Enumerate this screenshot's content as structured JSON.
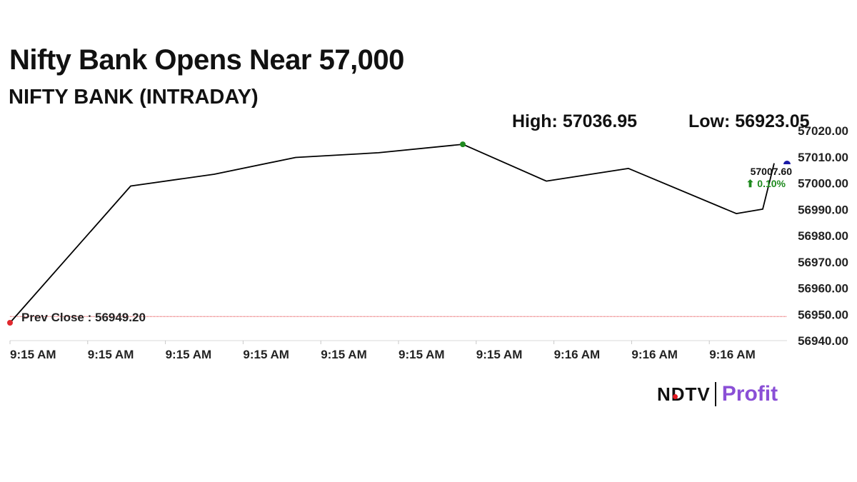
{
  "headline": "Nifty Bank Opens Near 57,000",
  "chart_data": {
    "type": "line",
    "title": "NIFTY BANK (INTRADAY)",
    "high_label": "High: 57036.95",
    "low_label": "Low: 56923.05",
    "prev_close_label": "Prev Close : 56949.20",
    "prev_close": 56949.2,
    "last_value_label": "57007.60",
    "change_label": "⬆ 0.10%",
    "ylim": [
      56940,
      57020
    ],
    "y_ticks": [
      "57020.00",
      "57010.00",
      "57000.00",
      "56990.00",
      "56980.00",
      "56970.00",
      "56960.00",
      "56950.00",
      "56940.00"
    ],
    "x_ticks": [
      "9:15 AM",
      "9:15 AM",
      "9:15 AM",
      "9:15 AM",
      "9:15 AM",
      "9:15 AM",
      "9:15 AM",
      "9:16 AM",
      "9:16 AM",
      "9:16 AM"
    ],
    "series": [
      {
        "values": [
          56946.8,
          56998.9,
          57003.4,
          57009.8,
          57011.6,
          57014.8,
          57000.8,
          57005.6,
          56988.4,
          56990.1,
          57007.6
        ]
      }
    ],
    "grid": false,
    "colors": {
      "line": "#000000",
      "prev_close": "#e0282e",
      "start_marker": "#e0282e",
      "high_marker": "#1f8a1f",
      "end_marker": "#1a1aa6",
      "change": "#1f8a1f"
    }
  },
  "logo": {
    "ndtv": "NDTV",
    "profit": "Profit"
  }
}
